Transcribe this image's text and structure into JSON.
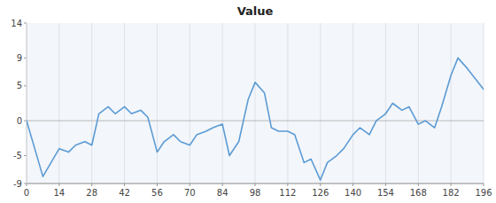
{
  "chart_data": {
    "type": "line",
    "title": "Value",
    "x": [
      0,
      7,
      14,
      18,
      21,
      25,
      28,
      31,
      35,
      38,
      42,
      45,
      49,
      52,
      56,
      59,
      63,
      66,
      70,
      73,
      77,
      80,
      84,
      87,
      91,
      95,
      98,
      102,
      105,
      108,
      112,
      115,
      119,
      122,
      126,
      129,
      133,
      136,
      140,
      143,
      147,
      150,
      154,
      157,
      161,
      164,
      168,
      171,
      175,
      178,
      182,
      185,
      189,
      196
    ],
    "series": [
      {
        "color": "#5B9BD5",
        "values": [
          0,
          -8,
          -4,
          -4.5,
          -3.5,
          -3,
          -3.5,
          1,
          2,
          1,
          2,
          1,
          1.5,
          0.5,
          -4.5,
          -3,
          -2,
          -3,
          -3.5,
          -2,
          -1.5,
          -1,
          -0.5,
          -5,
          -3,
          3,
          5.5,
          4,
          -1,
          -1.5,
          -1.5,
          -2,
          -6,
          -5.5,
          -8.5,
          -6,
          -5,
          -4,
          -2,
          -1,
          -2,
          0,
          1,
          2.5,
          1.5,
          2,
          -0.5,
          0,
          -1,
          2,
          6.5,
          9,
          7.5,
          4.5
        ]
      }
    ],
    "xlim": [
      0,
      196
    ],
    "ylim": [
      -9,
      14
    ],
    "xticks": [
      0,
      14,
      28,
      42,
      56,
      70,
      84,
      98,
      112,
      126,
      140,
      154,
      168,
      182,
      196
    ],
    "yticks": [
      -9,
      -5,
      0,
      5,
      9,
      14
    ],
    "grid": "x"
  }
}
